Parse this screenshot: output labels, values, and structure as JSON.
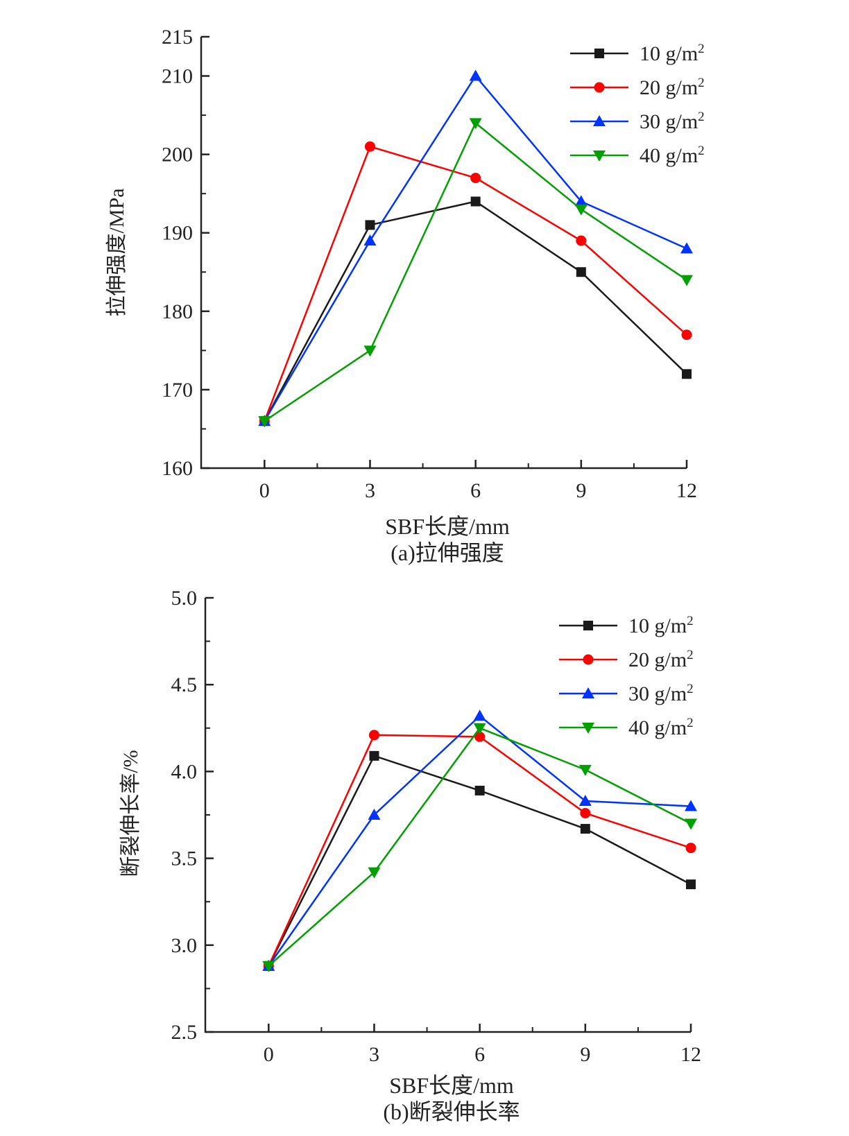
{
  "chart_data": [
    {
      "type": "line",
      "id": "a",
      "caption": "(a)拉伸强度",
      "xlabel": "SBF长度/mm",
      "ylabel": "拉伸强度/MPa",
      "x": [
        0,
        3,
        6,
        9,
        12
      ],
      "xticks": [
        "0",
        "3",
        "6",
        "9",
        "12"
      ],
      "ylim": [
        160,
        215
      ],
      "yticks": [
        "160",
        "170",
        "180",
        "190",
        "200",
        "210",
        "215"
      ],
      "legend_position": "top-right",
      "series": [
        {
          "name": "10 g/m",
          "sup": "2",
          "color": "#1a1a1a",
          "marker": "square",
          "values": [
            166,
            191,
            194,
            185,
            172
          ]
        },
        {
          "name": "20 g/m",
          "sup": "2",
          "color": "#ff0000",
          "marker": "circle",
          "values": [
            166,
            201,
            197,
            189,
            177
          ]
        },
        {
          "name": "30 g/m",
          "sup": "2",
          "color": "#0033ff",
          "marker": "triangle-up",
          "values": [
            166,
            189,
            210,
            194,
            188
          ]
        },
        {
          "name": "40 g/m",
          "sup": "2",
          "color": "#00a000",
          "marker": "triangle-down",
          "values": [
            166,
            175,
            204,
            193,
            184
          ]
        }
      ]
    },
    {
      "type": "line",
      "id": "b",
      "caption": "(b)断裂伸长率",
      "xlabel": "SBF长度/mm",
      "ylabel": "断裂伸长率/%",
      "x": [
        0,
        3,
        6,
        9,
        12
      ],
      "xticks": [
        "0",
        "3",
        "6",
        "9",
        "12"
      ],
      "ylim": [
        2.5,
        5.0
      ],
      "yticks": [
        "2.5",
        "3.0",
        "3.5",
        "4.0",
        "4.5",
        "5.0"
      ],
      "legend_position": "top-right",
      "series": [
        {
          "name": "10 g/m",
          "sup": "2",
          "color": "#1a1a1a",
          "marker": "square",
          "values": [
            2.88,
            4.09,
            3.89,
            3.67,
            3.35
          ]
        },
        {
          "name": "20 g/m",
          "sup": "2",
          "color": "#ff0000",
          "marker": "circle",
          "values": [
            2.88,
            4.21,
            4.2,
            3.76,
            3.56
          ]
        },
        {
          "name": "30 g/m",
          "sup": "2",
          "color": "#0033ff",
          "marker": "triangle-up",
          "values": [
            2.88,
            3.75,
            4.32,
            3.83,
            3.8
          ]
        },
        {
          "name": "40 g/m",
          "sup": "2",
          "color": "#00a000",
          "marker": "triangle-down",
          "values": [
            2.88,
            3.42,
            4.25,
            4.01,
            3.7
          ]
        }
      ]
    }
  ]
}
